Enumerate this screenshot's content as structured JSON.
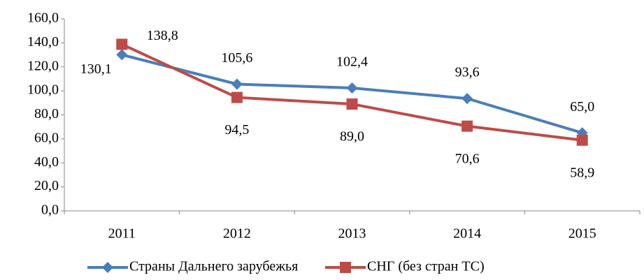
{
  "chart_data": {
    "type": "line",
    "categories": [
      "2011",
      "2012",
      "2013",
      "2014",
      "2015"
    ],
    "series": [
      {
        "name": "Страны Дальнего зарубежья",
        "color": "#4a7ebb",
        "marker": "diamond",
        "values": [
          130.1,
          105.6,
          102.4,
          93.6,
          65.0
        ],
        "value_labels": [
          "130,1",
          "105,6",
          "102,4",
          "93,6",
          "65,0"
        ]
      },
      {
        "name": "СНГ (без стран ТС)",
        "color": "#be4b48",
        "marker": "square",
        "values": [
          138.8,
          94.5,
          89.0,
          70.6,
          58.9
        ],
        "value_labels": [
          "138,8",
          "94,5",
          "89,0",
          "70,6",
          "58,9"
        ]
      }
    ],
    "ylim": [
      0,
      160
    ],
    "yticks": [
      {
        "value": 0,
        "label": "0,0"
      },
      {
        "value": 20,
        "label": "20,0"
      },
      {
        "value": 40,
        "label": "40,0"
      },
      {
        "value": 60,
        "label": "60,0"
      },
      {
        "value": 80,
        "label": "80,0"
      },
      {
        "value": 100,
        "label": "100,0"
      },
      {
        "value": 120,
        "label": "120,0"
      },
      {
        "value": 140,
        "label": "140,0"
      },
      {
        "value": 160,
        "label": "160,0"
      }
    ],
    "grid": false,
    "legend": "bottom"
  }
}
